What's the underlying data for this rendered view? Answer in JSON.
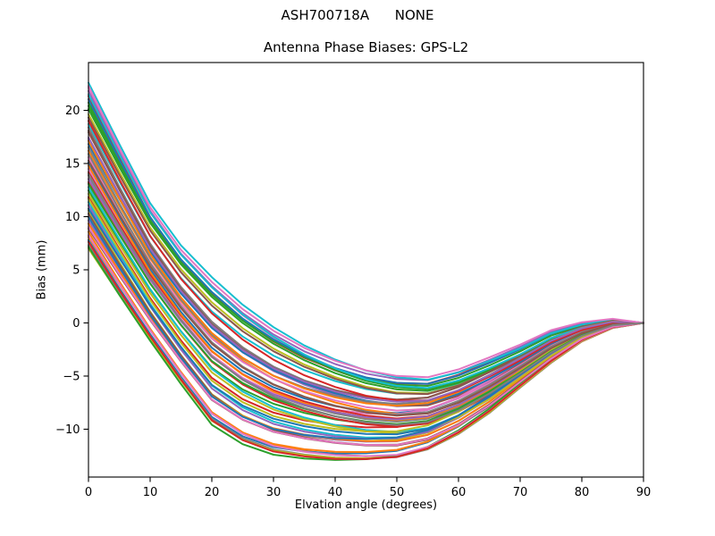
{
  "figure": {
    "suptitle": "ASH700718A      NONE",
    "background": "#ffffff"
  },
  "chart_data": {
    "type": "line",
    "title": "Antenna Phase Biases: GPS-L2",
    "xlabel": "Elvation angle (degrees)",
    "ylabel": "Bias (mm)",
    "xlim": [
      0,
      90
    ],
    "ylim": [
      -14.5,
      24.5
    ],
    "xticks": [
      0,
      10,
      20,
      30,
      40,
      50,
      60,
      70,
      80,
      90
    ],
    "yticks": [
      -10,
      -5,
      0,
      5,
      10,
      15,
      20
    ],
    "grid": false,
    "legend": "none",
    "frame_color": "#000000",
    "x": [
      0,
      5,
      10,
      15,
      20,
      25,
      30,
      35,
      40,
      45,
      50,
      55,
      60,
      65,
      70,
      75,
      80,
      85,
      90
    ],
    "envelope_top": [
      22.6,
      16.8,
      11.2,
      7.2,
      4.2,
      1.6,
      -0.5,
      -2.2,
      -3.5,
      -4.5,
      -5.1,
      -5.3,
      -4.6,
      -3.5,
      -2.3,
      -0.9,
      -0.1,
      0.3,
      0.0
    ],
    "envelope_bottom": [
      7.0,
      2.6,
      -1.6,
      -5.6,
      -9.4,
      -11.2,
      -12.2,
      -12.6,
      -12.8,
      -12.8,
      -12.6,
      -11.8,
      -10.3,
      -8.3,
      -5.9,
      -3.6,
      -1.6,
      -0.4,
      0.0
    ],
    "line_count": 58,
    "color_cycle": [
      "#1f77b4",
      "#ff7f0e",
      "#2ca02c",
      "#d62728",
      "#9467bd",
      "#8c564b",
      "#e377c2",
      "#7f7f7f",
      "#bcbd22",
      "#17becf"
    ],
    "series": [
      {
        "t": 0.52,
        "w1": 0.18,
        "w2": -0.12
      },
      {
        "t": 0.07,
        "w1": -0.32,
        "w2": 0.22
      },
      {
        "t": 0.88,
        "w1": 0.05,
        "w2": 0.3
      },
      {
        "t": 0.31,
        "w1": 0.4,
        "w2": -0.25
      },
      {
        "t": 0.66,
        "w1": -0.15,
        "w2": 0.1
      },
      {
        "t": 0.12,
        "w1": 0.28,
        "w2": 0.35
      },
      {
        "t": 0.97,
        "w1": -0.4,
        "w2": -0.18
      },
      {
        "t": 0.44,
        "w1": 0.1,
        "w2": 0.26
      },
      {
        "t": 0.23,
        "w1": -0.22,
        "w2": -0.3
      },
      {
        "t": 0.75,
        "w1": 0.35,
        "w2": 0.05
      },
      {
        "t": 0.05,
        "w1": 0.12,
        "w2": -0.2
      },
      {
        "t": 0.59,
        "w1": -0.28,
        "w2": 0.32
      },
      {
        "t": 0.35,
        "w1": 0.42,
        "w2": 0.15
      },
      {
        "t": 0.92,
        "w1": -0.08,
        "w2": -0.28
      },
      {
        "t": 0.17,
        "w1": 0.22,
        "w2": 0.08
      },
      {
        "t": 0.7,
        "w1": -0.38,
        "w2": 0.24
      },
      {
        "t": 0.48,
        "w1": 0.3,
        "w2": -0.35
      },
      {
        "t": 0.02,
        "w1": -0.12,
        "w2": 0.18
      },
      {
        "t": 0.81,
        "w1": 0.08,
        "w2": 0.28
      },
      {
        "t": 0.28,
        "w1": -0.3,
        "w2": -0.1
      },
      {
        "t": 0.63,
        "w1": 0.25,
        "w2": 0.2
      },
      {
        "t": 0.1,
        "w1": -0.18,
        "w2": -0.24
      },
      {
        "t": 0.86,
        "w1": 0.38,
        "w2": 0.12
      },
      {
        "t": 0.4,
        "w1": -0.05,
        "w2": 0.34
      },
      {
        "t": 0.95,
        "w1": 0.15,
        "w2": -0.15
      },
      {
        "t": 0.21,
        "w1": -0.42,
        "w2": 0.06
      },
      {
        "t": 0.55,
        "w1": 0.32,
        "w2": 0.25
      },
      {
        "t": 0.73,
        "w1": -0.2,
        "w2": -0.32
      },
      {
        "t": 0.0,
        "w1": 0.06,
        "w2": 0.16
      },
      {
        "t": 0.37,
        "w1": -0.35,
        "w2": 0.28
      },
      {
        "t": 0.9,
        "w1": 0.2,
        "w2": -0.06
      },
      {
        "t": 0.15,
        "w1": 0.44,
        "w2": 0.18
      },
      {
        "t": 0.01,
        "w1": -0.1,
        "w2": -0.26
      },
      {
        "t": 0.46,
        "w1": 0.26,
        "w2": 0.3
      },
      {
        "t": 0.26,
        "w1": -0.25,
        "w2": -0.14
      },
      {
        "t": 0.79,
        "w1": 0.12,
        "w2": 0.22
      },
      {
        "t": 0.08,
        "w1": -0.4,
        "w2": 0.04
      },
      {
        "t": 0.61,
        "w1": 0.34,
        "w2": -0.22
      },
      {
        "t": 0.33,
        "w1": -0.14,
        "w2": 0.36
      },
      {
        "t": 1.0,
        "w1": 0.02,
        "w2": 0.1
      },
      {
        "t": 0.19,
        "w1": 0.3,
        "w2": -0.3
      },
      {
        "t": 0.5,
        "w1": -0.26,
        "w2": 0.14
      },
      {
        "t": 0.84,
        "w1": 0.16,
        "w2": 0.32
      },
      {
        "t": 0.04,
        "w1": -0.34,
        "w2": -0.08
      },
      {
        "t": 0.42,
        "w1": 0.44,
        "w2": 0.2
      },
      {
        "t": 0.71,
        "w1": -0.06,
        "w2": -0.34
      },
      {
        "t": 0.13,
        "w1": 0.24,
        "w2": 0.28
      },
      {
        "t": 0.57,
        "w1": -0.3,
        "w2": 0.02
      },
      {
        "t": 0.3,
        "w1": 0.1,
        "w2": -0.18
      },
      {
        "t": 0.93,
        "w1": -0.22,
        "w2": 0.26
      },
      {
        "t": 0.24,
        "w1": 0.36,
        "w2": 0.08
      },
      {
        "t": 0.65,
        "w1": -0.16,
        "w2": -0.28
      },
      {
        "t": 0.39,
        "w1": 0.28,
        "w2": 0.34
      },
      {
        "t": 0.77,
        "w1": -0.44,
        "w2": 0.12
      },
      {
        "t": 0.67,
        "w1": 0.14,
        "w2": -0.04
      },
      {
        "t": 0.53,
        "w1": -0.02,
        "w2": 0.24
      },
      {
        "t": 0.98,
        "w1": 0.2,
        "w2": -0.2
      },
      {
        "t": 0.45,
        "w1": -0.28,
        "w2": 0.3
      }
    ]
  }
}
